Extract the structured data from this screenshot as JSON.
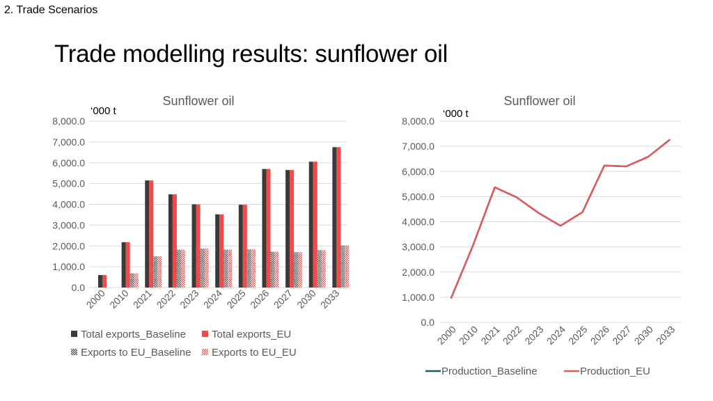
{
  "slide": {
    "section": "2. Trade Scenarios",
    "title": "Trade modelling results: sunflower oil"
  },
  "colors": {
    "baseline": "#3a3a3a",
    "eu": "#f04a4a",
    "gridline": "#d9d9d9",
    "line_eu": "#e05a5a",
    "line_baseline": "#1f5a6b"
  },
  "chart_data": [
    {
      "type": "bar",
      "title": "Sunflower oil",
      "unit_label": "‘000 t",
      "categories": [
        "2000",
        "2010",
        "2021",
        "2022",
        "2023",
        "2024",
        "2025",
        "2026",
        "2027",
        "2030",
        "2033"
      ],
      "ylim": [
        0,
        8000
      ],
      "yticks": [
        "0.0",
        "1,000.0",
        "2,000.0",
        "3,000.0",
        "4,000.0",
        "5,000.0",
        "6,000.0",
        "7,000.0",
        "8,000.0"
      ],
      "grid": true,
      "legend_position": "bottom",
      "series": [
        {
          "name": "Total exports_Baseline",
          "values": [
            600,
            2180,
            5150,
            4480,
            4000,
            3520,
            3980,
            5700,
            5650,
            6050,
            6750
          ]
        },
        {
          "name": "Total exports_EU",
          "values": [
            600,
            2180,
            5150,
            4480,
            4000,
            3520,
            3980,
            5700,
            5650,
            6050,
            6750
          ]
        },
        {
          "name": "Exports to EU_Baseline",
          "values": [
            0,
            680,
            1500,
            1820,
            1870,
            1820,
            1840,
            1720,
            1700,
            1800,
            2020
          ]
        },
        {
          "name": "Exports to EU_EU",
          "values": [
            0,
            680,
            1500,
            1820,
            1870,
            1820,
            1840,
            1720,
            1700,
            1800,
            2020
          ]
        }
      ]
    },
    {
      "type": "line",
      "title": "Sunflower oil",
      "unit_label": "‘000 t",
      "categories": [
        "2000",
        "2010",
        "2021",
        "2022",
        "2023",
        "2024",
        "2025",
        "2026",
        "2027",
        "2030",
        "2033"
      ],
      "ylim": [
        0,
        8000
      ],
      "yticks": [
        "0.0",
        "1,000.0",
        "2,000.0",
        "3,000.0",
        "4,000.0",
        "5,000.0",
        "6,000.0",
        "7,000.0",
        "8,000.0"
      ],
      "grid": true,
      "legend_position": "bottom",
      "series": [
        {
          "name": "Production_Baseline",
          "values": [
            950,
            3050,
            5370,
            4970,
            4350,
            3840,
            4380,
            6230,
            6200,
            6580,
            7270
          ]
        },
        {
          "name": "Production_EU",
          "values": [
            950,
            3050,
            5370,
            4970,
            4350,
            3840,
            4380,
            6230,
            6200,
            6580,
            7270
          ]
        }
      ]
    }
  ]
}
